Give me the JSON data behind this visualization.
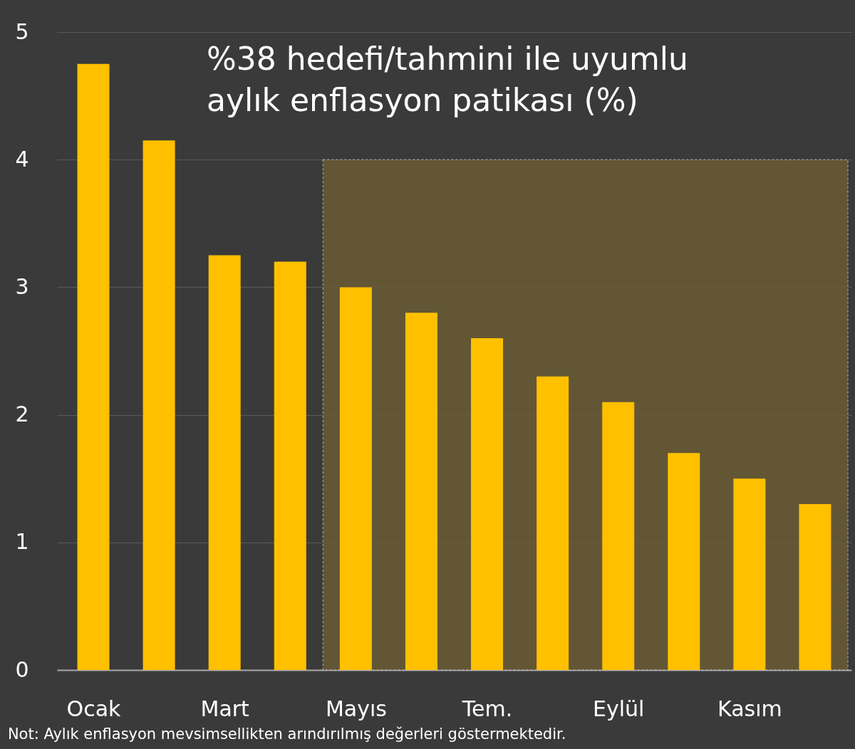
{
  "chart_data": {
    "type": "bar",
    "title": "%38 hedefi/tahmini ile uyumlu\naylık enflasyon patikası (%)",
    "categories": [
      "Ocak",
      null,
      "Mart",
      null,
      "Mayıs",
      null,
      "Tem.",
      null,
      "Eylül",
      null,
      "Kasım",
      null
    ],
    "values": [
      4.75,
      4.15,
      3.25,
      3.2,
      3.0,
      2.8,
      2.6,
      2.3,
      2.1,
      1.7,
      1.5,
      1.3
    ],
    "color": "#ffc000",
    "ylim": [
      0,
      5
    ],
    "yticks": [
      0,
      1,
      2,
      3,
      4,
      5
    ],
    "grid": "y",
    "bands": [
      {
        "axis": "y",
        "from": 0,
        "to": 4,
        "color": "#6b5c35"
      }
    ],
    "annotations": [
      "Not: Aylık enflasyon mevsimsellikten arındırılmış değerleri göstermektedir."
    ]
  }
}
